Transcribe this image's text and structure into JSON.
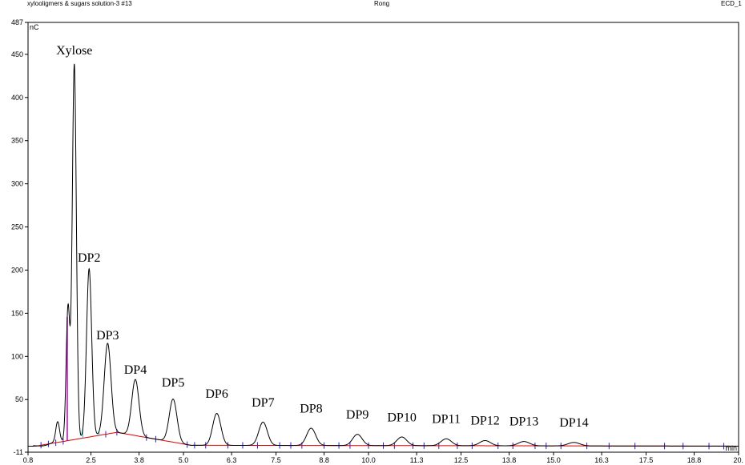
{
  "header": {
    "sample_title": "xylooligmers & sugars solution-3 #13",
    "operator": "Rong",
    "channel": "ECD_1"
  },
  "chart_data": {
    "type": "line",
    "title": "",
    "xlabel": "",
    "ylabel": "",
    "y_unit": "nC",
    "x_unit": "min",
    "xlim": [
      0.8,
      20.0
    ],
    "ylim": [
      -11,
      487
    ],
    "x_ticks": [
      "0.8",
      "2.5",
      "3.8",
      "5.0",
      "6.3",
      "7.5",
      "8.8",
      "10.0",
      "11.3",
      "12.5",
      "13.8",
      "15.0",
      "16.3",
      "17.5",
      "18.8",
      "20."
    ],
    "y_ticks": [
      "487",
      "450",
      "400",
      "350",
      "300",
      "250",
      "200",
      "150",
      "100",
      "50",
      "-11"
    ],
    "grid": false,
    "colors": {
      "trace": "#000000",
      "baseline": "#e00000",
      "drop_line": "#00c8e0",
      "xylose_fill_line": "#c000c0",
      "marker": "#2020d0"
    },
    "peaks": [
      {
        "label": "Xylose",
        "rt": 2.05,
        "height": 435
      },
      {
        "label": "DP2",
        "rt": 2.45,
        "height": 195
      },
      {
        "label": "DP3",
        "rt": 2.95,
        "height": 105
      },
      {
        "label": "DP4",
        "rt": 3.7,
        "height": 65
      },
      {
        "label": "DP5",
        "rt": 4.72,
        "height": 50
      },
      {
        "label": "DP6",
        "rt": 5.9,
        "height": 37
      },
      {
        "label": "DP7",
        "rt": 7.15,
        "height": 27
      },
      {
        "label": "DP8",
        "rt": 8.45,
        "height": 20
      },
      {
        "label": "DP9",
        "rt": 9.7,
        "height": 13
      },
      {
        "label": "DP10",
        "rt": 10.9,
        "height": 10
      },
      {
        "label": "DP11",
        "rt": 12.1,
        "height": 8
      },
      {
        "label": "DP12",
        "rt": 13.15,
        "height": 6
      },
      {
        "label": "DP13",
        "rt": 14.2,
        "height": 5
      },
      {
        "label": "DP14",
        "rt": 15.55,
        "height": 4
      }
    ],
    "shoulders": [
      {
        "rt": 1.6,
        "height": 23
      },
      {
        "rt": 1.88,
        "height": 155
      }
    ]
  }
}
